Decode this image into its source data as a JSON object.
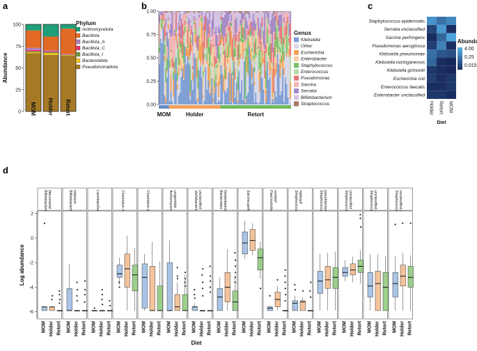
{
  "panel_labels": {
    "a": "a",
    "b": "b",
    "c": "c",
    "d": "d"
  },
  "chart_data": [
    {
      "type": "bar",
      "panel": "a",
      "stacked": true,
      "categories": [
        "MOM",
        "Holder",
        "Retort"
      ],
      "ylabel": "Abundance",
      "ylim": [
        0,
        100
      ],
      "yticks": [
        "0",
        "25",
        "50",
        "75",
        "100"
      ],
      "legend_title": "Phylum",
      "series": [
        {
          "name": "Pseudomonadota",
          "color": "#a67a25",
          "values": [
            67,
            65,
            64
          ]
        },
        {
          "name": "Bacteroidota",
          "color": "#efc31a",
          "values": [
            1,
            2,
            0.5
          ]
        },
        {
          "name": "Bacillota_I",
          "color": "#6c9a3c",
          "values": [
            1,
            1,
            0.5
          ]
        },
        {
          "name": "Bacillota_C",
          "color": "#e8346c",
          "values": [
            1.5,
            1,
            0.5
          ]
        },
        {
          "name": "Bacillota_A",
          "color": "#b27fc0",
          "values": [
            2.5,
            1,
            0.5
          ]
        },
        {
          "name": "Bacillota",
          "color": "#e36a24",
          "values": [
            20,
            16,
            29
          ]
        },
        {
          "name": "Actinomycetota",
          "color": "#1fa07a",
          "values": [
            7,
            14,
            5
          ]
        }
      ]
    },
    {
      "type": "bar",
      "panel": "b",
      "stacked": true,
      "ylim": [
        0,
        1
      ],
      "yticks": [
        "0.00",
        "0.25",
        "0.50",
        "0.75",
        "1.00"
      ],
      "groups": [
        {
          "name": "MOM",
          "color": "#6a8cc4",
          "n": 8
        },
        {
          "name": "Holder",
          "color": "#f3a25a",
          "n": 40
        },
        {
          "name": "Retort",
          "color": "#6fba60",
          "n": 55
        }
      ],
      "legend_title": "Genus",
      "genera": [
        {
          "name": "Klebsiella",
          "color": "#7f9fd4"
        },
        {
          "name": "Other",
          "color": "#d8d8e8"
        },
        {
          "name": "Escherichia",
          "color": "#f3a25a"
        },
        {
          "name": "Enterobacter",
          "color": "#f4d0a4"
        },
        {
          "name": "Staphylococcus",
          "color": "#7cbf6c"
        },
        {
          "name": "Enterococcus",
          "color": "#b4dca4"
        },
        {
          "name": "Pseudomonas",
          "color": "#e6787a"
        },
        {
          "name": "Sarcina",
          "color": "#f4b4b4"
        },
        {
          "name": "Serratia",
          "color": "#a48ac8"
        },
        {
          "name": "Bifidobacterium",
          "color": "#d4c4e4"
        },
        {
          "name": "Straptococcus",
          "color": "#a47868"
        }
      ]
    },
    {
      "type": "heatmap",
      "panel": "c",
      "rows": [
        "Staphylococcus epidermidis",
        "Serratia unclassified",
        "Sarcina perfringens",
        "Pseudomonas aeruginosa",
        "Klebsiella pneumoniae",
        "Klebsiella michiganensis",
        "Klebsiella grimontii",
        "Escherichia coli",
        "Enterococcus faecalis",
        "Enterobacter unclassified"
      ],
      "columns": [
        "Holder",
        "Retort",
        "MOM"
      ],
      "xlabel": "Diet",
      "legend_title": "Abundance",
      "legend_ticks": [
        "4.00",
        "0.25",
        "0.0156250000"
      ],
      "values": [
        [
          1.2,
          0.3,
          0.8
        ],
        [
          0.05,
          1.5,
          0.02
        ],
        [
          0.02,
          0.2,
          2.5
        ],
        [
          0.04,
          0.6,
          0.02
        ],
        [
          0.3,
          0.1,
          0.08
        ],
        [
          0.2,
          0.02,
          0.01
        ],
        [
          0.03,
          0.02,
          0.01
        ],
        [
          0.04,
          0.02,
          0.03
        ],
        [
          0.02,
          0.02,
          0.03
        ],
        [
          0.03,
          0.03,
          0.02
        ]
      ]
    },
    {
      "type": "box",
      "panel": "d",
      "ylabel": "Log abundance",
      "xlabel": "Diet",
      "ylim": [
        -6.3,
        2.2
      ],
      "yticks": [
        2,
        0,
        -2,
        -4,
        -6
      ],
      "diets": [
        "MOM",
        "Holder",
        "Retort"
      ],
      "diet_colors": [
        "#a9c4e6",
        "#f4c39c",
        "#9ccf8c"
      ],
      "facets": [
        {
          "name": "Bifidobacterium faecumarial",
          "boxes": [
            [
              -5.9,
              -5.9,
              -5.6,
              -5.6,
              -5.6
            ],
            [
              -5.9,
              -5.9,
              -5.6,
              -5.6,
              -5.6
            ],
            [
              -5.9,
              -5.9,
              -5.9,
              -5.9,
              -5.9
            ]
          ],
          "outliers": [
            [
              1.2
            ],
            [
              -4.7,
              -5
            ],
            [
              -4.3,
              -4.6,
              -5,
              -5.3
            ]
          ]
        },
        {
          "name": "Bifidobacterium infantum",
          "boxes": [
            [
              -5.9,
              -5.9,
              -5.9,
              -4.1,
              -2.1
            ],
            [
              -5.9,
              -5.9,
              -5.9,
              -5.9,
              -5.9
            ],
            [
              -5.9,
              -5.9,
              -5.9,
              -5.9,
              -5.9
            ]
          ],
          "outliers": [
            [],
            [
              -3.6,
              -4.2,
              -4.7,
              -5.1
            ],
            [
              -3.5,
              -4.2,
              -4.6,
              -5.2
            ]
          ]
        },
        {
          "name": "Lactobacillus gasseri",
          "boxes": [
            [
              -5.9,
              -5.9,
              -5.9,
              -5.9,
              -5.9
            ],
            [
              -5.9,
              -5.9,
              -5.9,
              -5.9,
              -5.9
            ],
            [
              -5.9,
              -5.9,
              -5.9,
              -5.9,
              -5.9
            ]
          ],
          "outliers": [
            [
              -5.7
            ],
            [
              -4.2,
              -4.6,
              -5,
              -5.4
            ],
            [
              -5.1,
              -5.5
            ]
          ]
        },
        {
          "name": "Clostridium neonatale",
          "boxes": [
            [
              -3.8,
              -3.2,
              -2.9,
              -2.2,
              -1.6
            ],
            [
              -5.9,
              -4,
              -2.5,
              -1.3,
              0.2
            ],
            [
              -5.9,
              -4.3,
              -3,
              -2.2,
              -0.8
            ]
          ],
          "outliers": [
            [
              -3.6,
              -4
            ],
            [],
            []
          ]
        },
        {
          "name": "Clostridium tawdii",
          "boxes": [
            [
              -5.9,
              -5.7,
              -3.2,
              -2.1,
              -1.3
            ],
            [
              -5.9,
              -5.9,
              -5.9,
              -2.3,
              -0.3
            ],
            [
              -5.9,
              -5.9,
              -5.9,
              -3.9,
              -1.9
            ]
          ],
          "outliers": [
            [],
            [],
            []
          ]
        },
        {
          "name": "Actinomyces urogenitale",
          "boxes": [
            [
              -5.9,
              -5.9,
              -5.9,
              -2,
              -0.2
            ],
            [
              -5.9,
              -5.9,
              -5.6,
              -4.6,
              -3.6
            ],
            [
              -5.9,
              -5.9,
              -5.9,
              -4.6,
              -3
            ]
          ],
          "outliers": [
            [],
            [
              -2.4,
              -3.1,
              -3.3
            ],
            [
              -2.8,
              -3.3,
              -3.6,
              -3.9
            ]
          ]
        },
        {
          "name": "Veillobacterium unclassified",
          "boxes": [
            [
              -5.9,
              -5.9,
              -5.6,
              -5.6,
              -5.3
            ],
            [
              -5.9,
              -5.9,
              -5.9,
              -5.9,
              -5.9
            ],
            [
              -5.9,
              -5.9,
              -5.9,
              -5.9,
              -5.9
            ]
          ],
          "outliers": [
            [
              -4.2,
              -4.6,
              -4.9
            ],
            [
              -2.5,
              -3,
              -3.6,
              -4.1,
              -4.7
            ],
            [
              -2.3,
              -3.1,
              -3.5,
              -4,
              -4.4
            ]
          ]
        },
        {
          "name": "Bacteroides thetaiotaomicron",
          "boxes": [
            [
              -5.9,
              -5.9,
              -4.8,
              -4.1,
              -3.2
            ],
            [
              -5.9,
              -5.2,
              -4,
              -2.8,
              -0.9
            ],
            [
              -5.9,
              -5.9,
              -5.2,
              -4.3,
              -3
            ]
          ],
          "outliers": [
            [],
            [],
            [
              -1.2,
              -1.8,
              -2.3,
              -2.8,
              -3.2,
              -3.6
            ]
          ]
        },
        {
          "name": "Sarcina perfringens",
          "boxes": [
            [
              -1.7,
              -1.3,
              -0.4,
              0.5,
              1.4
            ],
            [
              -1.4,
              -1,
              -0.2,
              0.7,
              1.2
            ],
            [
              -3.3,
              -2.6,
              -1.6,
              -0.9,
              -0.3
            ]
          ],
          "outliers": [
            [],
            [],
            [
              -4.1
            ]
          ]
        },
        {
          "name": "Paeclostridium sordellii",
          "boxes": [
            [
              -5.9,
              -5.9,
              -5.7,
              -5.6,
              -5.5
            ],
            [
              -5.9,
              -5.6,
              -5,
              -4.4,
              -3.9
            ],
            [
              -5.9,
              -5.9,
              -5.9,
              -5.9,
              -5.9
            ]
          ],
          "outliers": [
            [
              -4.7
            ],
            [
              -3.4
            ],
            [
              -2.6,
              -3.1,
              -3.6,
              -4.1,
              -4.6,
              -5.1
            ]
          ]
        },
        {
          "name": "Streptococcus haliboelf",
          "boxes": [
            [
              -5.9,
              -5.9,
              -5.3,
              -5.1,
              -4.7
            ],
            [
              -5.9,
              -5.9,
              -5.2,
              -5.1,
              -4.8
            ],
            [
              -5.9,
              -5.9,
              -5.9,
              -5.9,
              -5.9
            ]
          ],
          "outliers": [
            [
              -3.8,
              -4.2
            ],
            [
              -4.3
            ],
            [
              -3.6,
              -4.3,
              -4.8
            ]
          ]
        },
        {
          "name": "Streptococcus pseudopneumoniae_G",
          "boxes": [
            [
              -5.9,
              -4.5,
              -3.5,
              -2.7,
              -1.3
            ],
            [
              -5.9,
              -4.1,
              -3.4,
              -2.3,
              -1.2
            ],
            [
              -5.9,
              -4.1,
              -3.2,
              -2.4,
              -1.1
            ]
          ],
          "outliers": [
            [],
            [],
            []
          ]
        },
        {
          "name": "Streptococcus unclassified",
          "boxes": [
            [
              -3.5,
              -3.1,
              -2.8,
              -2.4,
              -1.8
            ],
            [
              -3.6,
              -3,
              -2.6,
              -2.1,
              -1.5
            ],
            [
              -3.7,
              -2.8,
              -2.3,
              -1.8,
              -1
            ]
          ],
          "outliers": [
            [],
            [],
            [
              1.9,
              1.6,
              0.9
            ]
          ]
        },
        {
          "name": "Streptococcus unclassified.1",
          "boxes": [
            [
              -5.9,
              -4.8,
              -3.9,
              -2.8,
              -1.3
            ],
            [
              -5.9,
              -5.9,
              -3.7,
              -2.7,
              -1.3
            ],
            [
              -5.9,
              -5.9,
              -4,
              -2.8,
              -1.5
            ]
          ],
          "outliers": [
            [],
            [],
            []
          ]
        },
        {
          "name": "Streptococcus unclassified.2",
          "boxes": [
            [
              -5.9,
              -4.8,
              -3.7,
              -2.8,
              -1.5
            ],
            [
              -5.9,
              -3.9,
              -3.1,
              -2.2,
              -1.2
            ],
            [
              -5.9,
              -4,
              -3.2,
              -2.3,
              -1.4
            ]
          ],
          "outliers": [
            [
              1.1
            ],
            [
              1.2
            ],
            [
              1.2
            ]
          ]
        }
      ]
    }
  ]
}
